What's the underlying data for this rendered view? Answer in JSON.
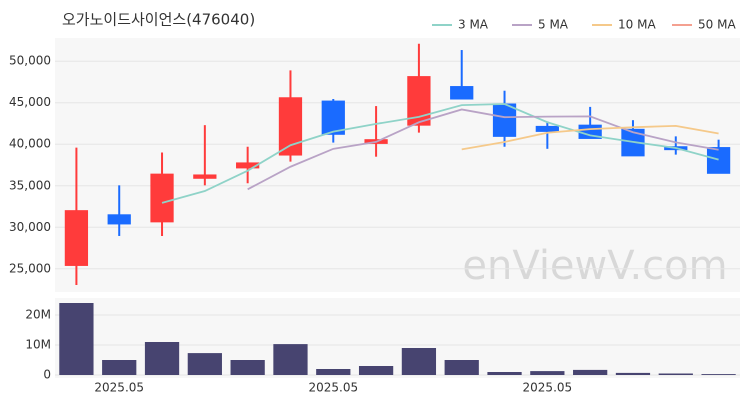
{
  "chart_data": {
    "type": "candlestick",
    "title": "오가노이드사이언스(476040)",
    "watermark": "enViewV.com",
    "categories": [
      null,
      "2025.05",
      null,
      null,
      null,
      null,
      "2025.05",
      null,
      null,
      null,
      null,
      "2025.05",
      null,
      null,
      null,
      null
    ],
    "open": [
      25400,
      31500,
      30650,
      35900,
      37150,
      38700,
      45200,
      40100,
      42300,
      46950,
      44850,
      42150,
      42300,
      41800,
      39700,
      39600
    ],
    "high": [
      39600,
      35050,
      39000,
      42300,
      39700,
      48900,
      45450,
      44600,
      52100,
      51350,
      46450,
      42750,
      44500,
      42900,
      40950,
      40550
    ],
    "low": [
      23050,
      28950,
      28950,
      35050,
      35300,
      37900,
      40200,
      38500,
      41400,
      45450,
      39700,
      39450,
      40700,
      38600,
      38750,
      36500
    ],
    "close": [
      32000,
      30400,
      36400,
      36300,
      37750,
      45600,
      41200,
      40550,
      48150,
      45450,
      40950,
      41550,
      40700,
      38600,
      39350,
      36500
    ],
    "up_color": "#ff3b3b",
    "down_color": "#1a6bff",
    "ylim": [
      22200,
      52800
    ],
    "yticks": [
      {
        "value": 25000,
        "label": "25,000"
      },
      {
        "value": 30000,
        "label": "30,000"
      },
      {
        "value": 35000,
        "label": "35,000"
      },
      {
        "value": 40000,
        "label": "40,000"
      },
      {
        "value": 45000,
        "label": "45,000"
      },
      {
        "value": 50000,
        "label": "50,000"
      }
    ],
    "series": [
      {
        "name": "3 MA",
        "color": "#8fd3c8",
        "values": [
          null,
          null,
          32933,
          34367,
          36817,
          39883,
          41517,
          42450,
          43300,
          44717,
          44850,
          42650,
          41067,
          40283,
          39550,
          38150
        ]
      },
      {
        "name": "5 MA",
        "color": "#b9a3c6",
        "values": [
          null,
          null,
          null,
          null,
          34570,
          37290,
          39450,
          40280,
          42650,
          44190,
          43260,
          43330,
          43360,
          41450,
          40230,
          39340
        ]
      },
      {
        "name": "10 MA",
        "color": "#f5c98a",
        "values": [
          null,
          null,
          null,
          null,
          null,
          null,
          null,
          null,
          null,
          39380,
          40275,
          41390,
          41820,
          42050,
          42210,
          41300
        ]
      },
      {
        "name": "50 MA",
        "color": "#f4a090",
        "values": [
          null,
          null,
          null,
          null,
          null,
          null,
          null,
          null,
          null,
          null,
          null,
          null,
          null,
          null,
          null,
          null
        ]
      }
    ],
    "volume": [
      24000000,
      5000000,
      11000000,
      7300000,
      5000000,
      10300000,
      2000000,
      3000000,
      9000000,
      5000000,
      1000000,
      1300000,
      1700000,
      700000,
      500000,
      300000
    ],
    "volume_color": "#474470",
    "volume_ylim": [
      0,
      25000000
    ],
    "volume_yticks": [
      {
        "value": 0,
        "label": "0"
      },
      {
        "value": 10000000,
        "label": "10M"
      },
      {
        "value": 20000000,
        "label": "20M"
      }
    ],
    "grid": true
  }
}
